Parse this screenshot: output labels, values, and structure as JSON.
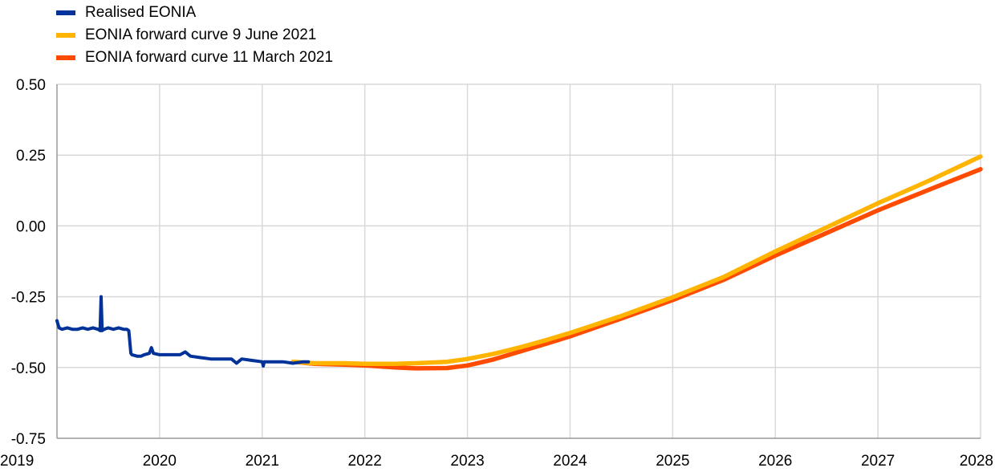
{
  "chart_data": {
    "type": "line",
    "title": "",
    "xlabel": "",
    "ylabel": "",
    "xlim": [
      2019.0,
      2028.0
    ],
    "ylim": [
      -0.75,
      0.5
    ],
    "y_ticks": [
      0.5,
      0.25,
      0.0,
      -0.25,
      -0.5,
      -0.75
    ],
    "y_tick_labels": [
      "0.50",
      "0.25",
      "0.00",
      "-0.25",
      "-0.50",
      "-0.75"
    ],
    "x_ticks": [
      2019,
      2020,
      2021,
      2022,
      2023,
      2024,
      2025,
      2026,
      2027,
      2028
    ],
    "x_tick_labels": [
      "2019",
      "2020",
      "2021",
      "2022",
      "2023",
      "2024",
      "2025",
      "2026",
      "2027",
      "2028"
    ],
    "grid": true,
    "legend_position": "top-left",
    "series": [
      {
        "name": "Realised EONIA",
        "color": "#003299",
        "x": [
          2019.0,
          2019.02,
          2019.05,
          2019.1,
          2019.15,
          2019.2,
          2019.25,
          2019.3,
          2019.35,
          2019.4,
          2019.42,
          2019.43,
          2019.44,
          2019.46,
          2019.5,
          2019.55,
          2019.6,
          2019.65,
          2019.68,
          2019.7,
          2019.72,
          2019.73,
          2019.78,
          2019.82,
          2019.85,
          2019.9,
          2019.92,
          2019.94,
          2020.0,
          2020.1,
          2020.2,
          2020.25,
          2020.3,
          2020.4,
          2020.5,
          2020.6,
          2020.7,
          2020.75,
          2020.8,
          2020.9,
          2021.0,
          2021.01,
          2021.02,
          2021.1,
          2021.2,
          2021.3,
          2021.4,
          2021.45
        ],
        "y": [
          -0.335,
          -0.36,
          -0.365,
          -0.36,
          -0.365,
          -0.365,
          -0.36,
          -0.365,
          -0.36,
          -0.365,
          -0.37,
          -0.25,
          -0.37,
          -0.365,
          -0.36,
          -0.365,
          -0.36,
          -0.365,
          -0.365,
          -0.37,
          -0.45,
          -0.455,
          -0.46,
          -0.46,
          -0.455,
          -0.45,
          -0.43,
          -0.45,
          -0.455,
          -0.455,
          -0.455,
          -0.445,
          -0.46,
          -0.465,
          -0.47,
          -0.47,
          -0.47,
          -0.485,
          -0.47,
          -0.475,
          -0.48,
          -0.495,
          -0.48,
          -0.48,
          -0.48,
          -0.485,
          -0.48,
          -0.48
        ]
      },
      {
        "name": "EONIA forward curve 9 June 2021",
        "color": "#ffb400",
        "x": [
          2021.3,
          2021.5,
          2021.8,
          2022.0,
          2022.3,
          2022.5,
          2022.8,
          2023.0,
          2023.25,
          2023.5,
          2023.75,
          2024.0,
          2024.5,
          2025.0,
          2025.5,
          2026.0,
          2026.5,
          2027.0,
          2027.5,
          2028.0
        ],
        "y": [
          -0.48,
          -0.485,
          -0.485,
          -0.487,
          -0.487,
          -0.485,
          -0.48,
          -0.47,
          -0.452,
          -0.43,
          -0.405,
          -0.378,
          -0.318,
          -0.252,
          -0.18,
          -0.09,
          -0.005,
          0.08,
          0.16,
          0.245
        ]
      },
      {
        "name": "EONIA forward curve 11 March 2021",
        "color": "#ff4b00",
        "x": [
          2021.3,
          2021.5,
          2021.8,
          2022.0,
          2022.3,
          2022.5,
          2022.8,
          2023.0,
          2023.25,
          2023.5,
          2023.75,
          2024.0,
          2024.5,
          2025.0,
          2025.5,
          2026.0,
          2026.5,
          2027.0,
          2027.5,
          2028.0
        ],
        "y": [
          -0.48,
          -0.487,
          -0.49,
          -0.493,
          -0.5,
          -0.503,
          -0.502,
          -0.493,
          -0.472,
          -0.445,
          -0.418,
          -0.39,
          -0.327,
          -0.262,
          -0.19,
          -0.105,
          -0.025,
          0.055,
          0.128,
          0.2
        ]
      }
    ]
  }
}
